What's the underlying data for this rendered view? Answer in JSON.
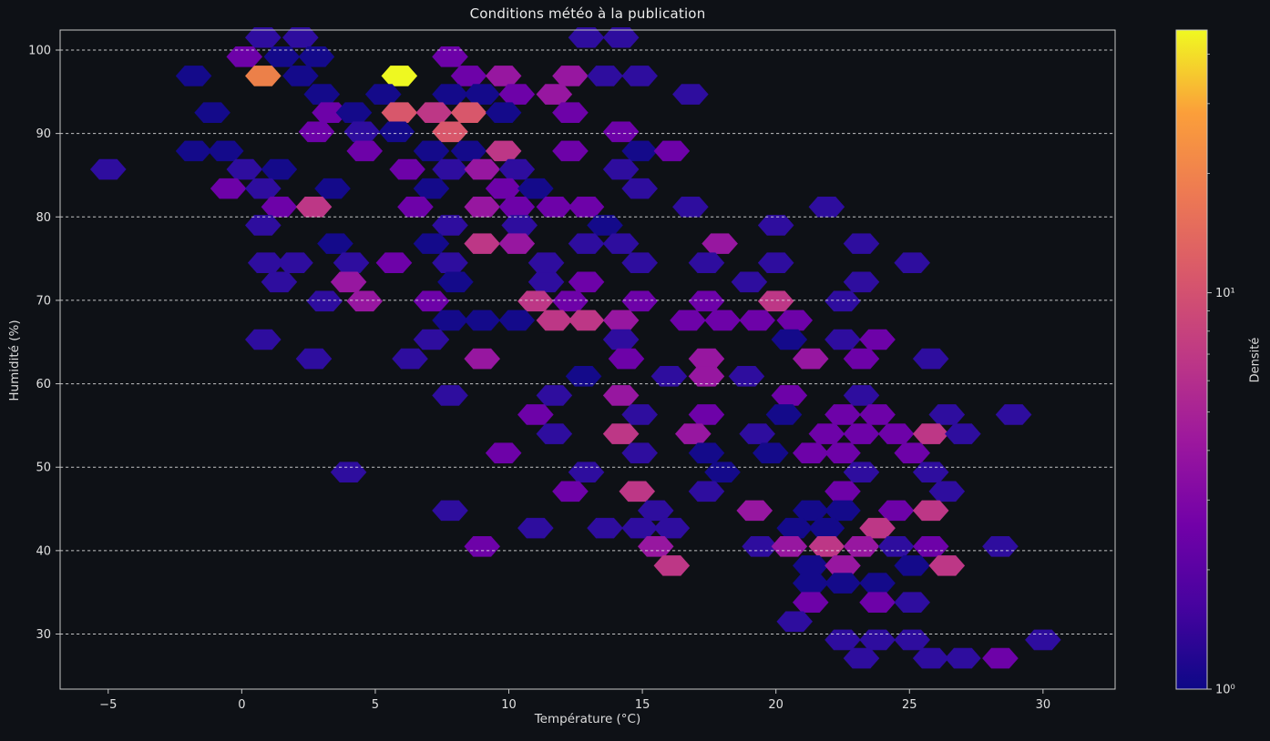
{
  "title": "Conditions météo à la publication",
  "x_axis": {
    "label": "Température (°C)",
    "tick_labels": [
      "−5",
      "0",
      "5",
      "10",
      "15",
      "20",
      "25",
      "30"
    ],
    "tick_values": [
      -5,
      0,
      5,
      10,
      15,
      20,
      25,
      30
    ],
    "min": -6.8,
    "max": 32.7
  },
  "y_axis": {
    "label": "Humidité (%)",
    "tick_labels": [
      "30",
      "40",
      "50",
      "60",
      "70",
      "80",
      "90",
      "100"
    ],
    "tick_values": [
      30,
      40,
      50,
      60,
      70,
      80,
      90,
      100
    ],
    "min": 23.4,
    "max": 102.4,
    "grid": "dashed horizontal white"
  },
  "colorbar": {
    "label": "Densité",
    "scale": "log",
    "vmin": 1,
    "vmax": 46,
    "major_ticks": [
      {
        "value": 1,
        "label": "10⁰"
      },
      {
        "value": 10,
        "label": "10¹"
      }
    ],
    "minor_tick_values": [
      2,
      3,
      4,
      5,
      6,
      7,
      8,
      9,
      20,
      30,
      40
    ],
    "colormap": "plasma",
    "gradient_stops": [
      "#0d0887",
      "#46039f",
      "#7201a8",
      "#9c179e",
      "#bd3786",
      "#d8576b",
      "#ed7953",
      "#fb9f3a",
      "#f0f921"
    ]
  },
  "style": {
    "background": "#0e1116",
    "text_color": "#e0e0e0",
    "spine_color": "#c6c6c6",
    "grid_color": "#f0f0f0"
  },
  "chart_data": {
    "type": "hexbin",
    "title": "Conditions météo à la publication",
    "xlabel": "Température (°C)",
    "ylabel": "Humidité (%)",
    "xlim": [
      -6.8,
      32.7
    ],
    "ylim": [
      23.4,
      102.4
    ],
    "density_label": "Densité",
    "count_colors": {
      "1": "#140a8a",
      "2": "#2e0d9e",
      "3": "#6d02a8",
      "4": "#9717a0",
      "7": "#bd3786",
      "11": "#d8576b",
      "15": "#ec8049",
      "46": "#eef821"
    },
    "points": [
      [
        0.8,
        101.5,
        2
      ],
      [
        2.2,
        101.5,
        2
      ],
      [
        12.9,
        101.5,
        2
      ],
      [
        14.2,
        101.5,
        2
      ],
      [
        0.1,
        99.2,
        3
      ],
      [
        1.5,
        99.2,
        1
      ],
      [
        2.8,
        99.2,
        1
      ],
      [
        7.8,
        99.2,
        3
      ],
      [
        -1.8,
        96.9,
        1
      ],
      [
        0.8,
        96.9,
        15
      ],
      [
        2.2,
        96.9,
        1
      ],
      [
        5.9,
        96.9,
        46
      ],
      [
        8.5,
        96.9,
        3
      ],
      [
        9.8,
        96.9,
        4
      ],
      [
        12.3,
        96.9,
        4
      ],
      [
        13.6,
        96.9,
        2
      ],
      [
        14.9,
        96.9,
        2
      ],
      [
        3.0,
        94.7,
        1
      ],
      [
        5.3,
        94.7,
        1
      ],
      [
        7.8,
        94.7,
        1
      ],
      [
        9.0,
        94.7,
        1
      ],
      [
        10.3,
        94.7,
        3
      ],
      [
        11.7,
        94.7,
        4
      ],
      [
        16.8,
        94.7,
        2
      ],
      [
        -1.1,
        92.5,
        1
      ],
      [
        3.3,
        92.5,
        3
      ],
      [
        4.2,
        92.5,
        1
      ],
      [
        5.9,
        92.5,
        11
      ],
      [
        7.2,
        92.5,
        7
      ],
      [
        8.5,
        92.5,
        11
      ],
      [
        9.8,
        92.5,
        1
      ],
      [
        12.3,
        92.5,
        3
      ],
      [
        2.8,
        90.2,
        3
      ],
      [
        4.5,
        90.2,
        2
      ],
      [
        5.8,
        90.2,
        1
      ],
      [
        7.8,
        90.2,
        11
      ],
      [
        14.2,
        90.2,
        3
      ],
      [
        -1.8,
        87.9,
        1
      ],
      [
        -0.6,
        87.9,
        1
      ],
      [
        4.6,
        87.9,
        3
      ],
      [
        7.1,
        87.9,
        1
      ],
      [
        8.5,
        87.9,
        1
      ],
      [
        9.8,
        87.9,
        7
      ],
      [
        12.3,
        87.9,
        3
      ],
      [
        14.9,
        87.9,
        1
      ],
      [
        16.1,
        87.9,
        3
      ],
      [
        -5.0,
        85.7,
        2
      ],
      [
        0.1,
        85.7,
        2
      ],
      [
        1.4,
        85.7,
        1
      ],
      [
        6.2,
        85.7,
        3
      ],
      [
        7.8,
        85.7,
        2
      ],
      [
        9.0,
        85.7,
        4
      ],
      [
        10.3,
        85.7,
        2
      ],
      [
        14.2,
        85.7,
        2
      ],
      [
        -0.5,
        83.4,
        3
      ],
      [
        0.8,
        83.4,
        2
      ],
      [
        3.4,
        83.4,
        1
      ],
      [
        7.1,
        83.4,
        1
      ],
      [
        9.8,
        83.4,
        3
      ],
      [
        11.0,
        83.4,
        1
      ],
      [
        14.9,
        83.4,
        2
      ],
      [
        1.4,
        81.2,
        3
      ],
      [
        2.7,
        81.2,
        7
      ],
      [
        6.5,
        81.2,
        3
      ],
      [
        9.0,
        81.2,
        4
      ],
      [
        10.3,
        81.2,
        3
      ],
      [
        11.7,
        81.2,
        3
      ],
      [
        12.9,
        81.2,
        3
      ],
      [
        16.8,
        81.2,
        2
      ],
      [
        21.9,
        81.2,
        2
      ],
      [
        0.8,
        79.0,
        2
      ],
      [
        7.8,
        79.0,
        2
      ],
      [
        10.4,
        79.0,
        2
      ],
      [
        13.6,
        79.0,
        1
      ],
      [
        20.0,
        79.0,
        2
      ],
      [
        3.5,
        76.8,
        1
      ],
      [
        7.1,
        76.8,
        1
      ],
      [
        9.0,
        76.8,
        7
      ],
      [
        10.3,
        76.8,
        4
      ],
      [
        12.9,
        76.8,
        2
      ],
      [
        14.2,
        76.8,
        2
      ],
      [
        17.9,
        76.8,
        4
      ],
      [
        23.2,
        76.8,
        2
      ],
      [
        0.9,
        74.5,
        2
      ],
      [
        2.0,
        74.5,
        2
      ],
      [
        4.1,
        74.5,
        2
      ],
      [
        5.7,
        74.5,
        3
      ],
      [
        7.8,
        74.5,
        2
      ],
      [
        11.4,
        74.5,
        2
      ],
      [
        14.9,
        74.5,
        2
      ],
      [
        17.4,
        74.5,
        2
      ],
      [
        20.0,
        74.5,
        2
      ],
      [
        25.1,
        74.5,
        2
      ],
      [
        1.4,
        72.2,
        2
      ],
      [
        4.0,
        72.2,
        4
      ],
      [
        8.0,
        72.2,
        1
      ],
      [
        11.4,
        72.2,
        2
      ],
      [
        12.9,
        72.2,
        3
      ],
      [
        19.0,
        72.2,
        2
      ],
      [
        23.2,
        72.2,
        2
      ],
      [
        3.1,
        69.9,
        2
      ],
      [
        4.6,
        69.9,
        4
      ],
      [
        7.1,
        69.9,
        3
      ],
      [
        11.0,
        69.9,
        7
      ],
      [
        12.3,
        69.9,
        3
      ],
      [
        14.9,
        69.9,
        3
      ],
      [
        17.4,
        69.9,
        3
      ],
      [
        20.0,
        69.9,
        7
      ],
      [
        22.5,
        69.9,
        2
      ],
      [
        7.8,
        67.6,
        1
      ],
      [
        9.0,
        67.6,
        1
      ],
      [
        10.3,
        67.6,
        1
      ],
      [
        11.7,
        67.6,
        7
      ],
      [
        12.9,
        67.6,
        7
      ],
      [
        14.2,
        67.6,
        4
      ],
      [
        16.7,
        67.6,
        3
      ],
      [
        18.0,
        67.6,
        3
      ],
      [
        19.3,
        67.6,
        3
      ],
      [
        20.7,
        67.6,
        3
      ],
      [
        0.8,
        65.3,
        2
      ],
      [
        7.1,
        65.3,
        2
      ],
      [
        14.2,
        65.3,
        2
      ],
      [
        20.5,
        65.3,
        1
      ],
      [
        22.5,
        65.3,
        2
      ],
      [
        23.8,
        65.3,
        3
      ],
      [
        2.7,
        63.0,
        2
      ],
      [
        6.3,
        63.0,
        2
      ],
      [
        9.0,
        63.0,
        4
      ],
      [
        14.4,
        63.0,
        3
      ],
      [
        17.4,
        63.0,
        4
      ],
      [
        21.3,
        63.0,
        4
      ],
      [
        23.2,
        63.0,
        3
      ],
      [
        25.8,
        63.0,
        2
      ],
      [
        12.8,
        60.9,
        1
      ],
      [
        16.0,
        60.9,
        2
      ],
      [
        17.4,
        60.9,
        4
      ],
      [
        18.9,
        60.9,
        2
      ],
      [
        7.8,
        58.6,
        2
      ],
      [
        11.7,
        58.6,
        2
      ],
      [
        14.2,
        58.6,
        4
      ],
      [
        20.5,
        58.6,
        3
      ],
      [
        23.2,
        58.6,
        2
      ],
      [
        11.0,
        56.3,
        3
      ],
      [
        14.9,
        56.3,
        2
      ],
      [
        17.4,
        56.3,
        3
      ],
      [
        20.3,
        56.3,
        1
      ],
      [
        22.5,
        56.3,
        3
      ],
      [
        23.8,
        56.3,
        3
      ],
      [
        26.4,
        56.3,
        2
      ],
      [
        28.9,
        56.3,
        2
      ],
      [
        11.7,
        54.0,
        2
      ],
      [
        14.2,
        54.0,
        7
      ],
      [
        16.9,
        54.0,
        4
      ],
      [
        19.3,
        54.0,
        2
      ],
      [
        21.9,
        54.0,
        3
      ],
      [
        23.2,
        54.0,
        3
      ],
      [
        24.5,
        54.0,
        3
      ],
      [
        25.8,
        54.0,
        7
      ],
      [
        27.0,
        54.0,
        2
      ],
      [
        9.8,
        51.7,
        3
      ],
      [
        14.9,
        51.7,
        2
      ],
      [
        17.4,
        51.7,
        1
      ],
      [
        19.8,
        51.7,
        1
      ],
      [
        21.3,
        51.7,
        3
      ],
      [
        22.5,
        51.7,
        3
      ],
      [
        25.1,
        51.7,
        3
      ],
      [
        4.0,
        49.4,
        2
      ],
      [
        12.9,
        49.4,
        2
      ],
      [
        18.0,
        49.4,
        1
      ],
      [
        23.2,
        49.4,
        2
      ],
      [
        25.8,
        49.4,
        2
      ],
      [
        12.3,
        47.1,
        3
      ],
      [
        14.8,
        47.1,
        7
      ],
      [
        17.4,
        47.1,
        2
      ],
      [
        22.5,
        47.1,
        3
      ],
      [
        26.4,
        47.1,
        2
      ],
      [
        7.8,
        44.8,
        2
      ],
      [
        15.5,
        44.8,
        2
      ],
      [
        19.2,
        44.8,
        4
      ],
      [
        21.3,
        44.8,
        1
      ],
      [
        22.5,
        44.8,
        1
      ],
      [
        24.5,
        44.8,
        3
      ],
      [
        25.8,
        44.8,
        7
      ],
      [
        11.0,
        42.7,
        2
      ],
      [
        13.6,
        42.7,
        2
      ],
      [
        14.9,
        42.7,
        2
      ],
      [
        16.1,
        42.7,
        2
      ],
      [
        20.7,
        42.7,
        1
      ],
      [
        21.9,
        42.7,
        1
      ],
      [
        23.8,
        42.7,
        7
      ],
      [
        9.0,
        40.5,
        3
      ],
      [
        15.5,
        40.5,
        4
      ],
      [
        19.4,
        40.5,
        2
      ],
      [
        20.5,
        40.5,
        4
      ],
      [
        21.9,
        40.5,
        7
      ],
      [
        23.2,
        40.5,
        4
      ],
      [
        24.5,
        40.5,
        2
      ],
      [
        25.8,
        40.5,
        3
      ],
      [
        28.4,
        40.5,
        2
      ],
      [
        16.1,
        38.2,
        7
      ],
      [
        21.3,
        38.2,
        1
      ],
      [
        22.5,
        38.2,
        4
      ],
      [
        25.1,
        38.2,
        1
      ],
      [
        26.4,
        38.2,
        7
      ],
      [
        21.3,
        36.1,
        1
      ],
      [
        22.5,
        36.1,
        1
      ],
      [
        23.8,
        36.1,
        1
      ],
      [
        21.3,
        33.8,
        3
      ],
      [
        23.8,
        33.8,
        3
      ],
      [
        25.1,
        33.8,
        2
      ],
      [
        20.7,
        31.5,
        2
      ],
      [
        22.5,
        29.3,
        2
      ],
      [
        23.8,
        29.3,
        2
      ],
      [
        25.1,
        29.3,
        2
      ],
      [
        30.0,
        29.3,
        2
      ],
      [
        23.2,
        27.1,
        2
      ],
      [
        25.8,
        27.1,
        2
      ],
      [
        27.0,
        27.1,
        2
      ],
      [
        28.4,
        27.1,
        3
      ]
    ]
  }
}
